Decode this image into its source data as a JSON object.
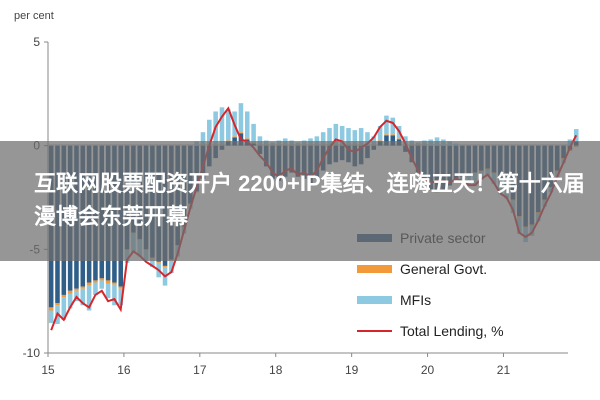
{
  "overlay": {
    "title": "互联网股票配资开户 2200+IP集结、连嗨五天！第十六届漫博会东莞开幕"
  },
  "chart_data": {
    "type": "bar",
    "unit_label": "per cent",
    "ylim": [
      -10,
      5
    ],
    "yticks": [
      5,
      0,
      -5,
      -10
    ],
    "xlim": [
      2015.0,
      2021.85
    ],
    "xticks": [
      "15",
      "16",
      "17",
      "18",
      "19",
      "20",
      "21"
    ],
    "stacked": true,
    "grid": false,
    "legend_position": "bottom-right",
    "colors": {
      "private": "#2f5f88",
      "general": "#f29a3a",
      "mfis": "#8ec9e2",
      "total": "#d7262b"
    },
    "legend": [
      "Private sector",
      "General Govt.",
      "MFIs",
      "Total Lending, %"
    ],
    "series": [
      {
        "name": "Private sector",
        "values": [
          -7.8,
          -7.6,
          -7.2,
          -7.0,
          -6.9,
          -6.8,
          -6.6,
          -6.5,
          -6.4,
          -6.5,
          -6.6,
          -6.8,
          -5.0,
          -4.2,
          -4.5,
          -5.0,
          -5.4,
          -5.6,
          -5.8,
          -5.5,
          -4.8,
          -3.9,
          -2.8,
          -2.2,
          -1.6,
          -1.0,
          -0.6,
          -0.2,
          0.2,
          0.4,
          0.6,
          0.3,
          0.1,
          -0.4,
          -1.0,
          -1.6,
          -1.7,
          -1.5,
          -1.3,
          -1.5,
          -1.6,
          -1.8,
          -1.6,
          -1.2,
          -0.9,
          -0.8,
          -0.7,
          -0.8,
          -1.0,
          -0.9,
          -0.6,
          -0.2,
          0.2,
          0.5,
          0.5,
          0.3,
          -0.3,
          -0.8,
          -1.3,
          -1.8,
          -2.1,
          -2.2,
          -2.1,
          -1.9,
          -1.6,
          -1.5,
          -1.4,
          -1.3,
          -1.2,
          -1.1,
          -1.3,
          -1.6,
          -2.0,
          -2.6,
          -3.4,
          -3.9,
          -3.8,
          -3.2,
          -2.6,
          -2.0,
          -1.2,
          -0.6,
          -0.2,
          0.2
        ],
        "values_per_year": 12
      },
      {
        "name": "General Govt.",
        "values": [
          -0.15,
          -0.1,
          -0.1,
          -0.15,
          -0.1,
          -0.1,
          -0.15,
          -0.1,
          -0.1,
          -0.15,
          -0.1,
          -0.1,
          -0.05,
          -0.05,
          -0.05,
          -0.05,
          -0.05,
          -0.05,
          -0.05,
          -0.05,
          -0.05,
          -0.05,
          -0.05,
          -0.05,
          0.05,
          0.05,
          0.05,
          0.05,
          0.05,
          0.05,
          0.05,
          0.05,
          0.05,
          0.05,
          0.05,
          0.05,
          0.05,
          0.05,
          0.05,
          0.05,
          0.05,
          0.05,
          0.05,
          0.05,
          0.05,
          0.05,
          0.05,
          0.05,
          0.05,
          0.05,
          0.05,
          0.05,
          0.05,
          0.05,
          0.05,
          0.05,
          0.05,
          0.05,
          0.05,
          0.05,
          -0.05,
          -0.05,
          -0.05,
          -0.05,
          -0.05,
          -0.05,
          -0.05,
          -0.05,
          -0.05,
          -0.05,
          -0.05,
          -0.05,
          -0.05,
          -0.05,
          -0.05,
          -0.05,
          -0.05,
          -0.05,
          -0.05,
          -0.05,
          -0.05,
          -0.05,
          -0.05,
          -0.05
        ],
        "values_per_year": 12
      },
      {
        "name": "MFIs",
        "values": [
          -0.6,
          -0.9,
          -1.1,
          -0.7,
          -0.5,
          -0.8,
          -1.2,
          -0.6,
          -0.4,
          -0.7,
          -1.0,
          -0.8,
          -0.6,
          -0.9,
          -0.8,
          -0.5,
          -0.4,
          -0.7,
          -0.9,
          -0.6,
          -0.5,
          -0.3,
          -0.2,
          0.2,
          0.6,
          1.2,
          1.6,
          1.8,
          1.5,
          1.2,
          1.4,
          1.3,
          0.9,
          0.4,
          0.2,
          0.1,
          0.2,
          0.3,
          0.2,
          0.1,
          0.2,
          0.3,
          0.4,
          0.6,
          0.8,
          1.0,
          0.9,
          0.8,
          0.7,
          0.8,
          0.6,
          0.4,
          0.7,
          0.9,
          0.8,
          0.6,
          0.4,
          0.2,
          0.1,
          0.2,
          0.3,
          0.4,
          0.3,
          0.2,
          0.1,
          -0.2,
          -0.4,
          -0.6,
          -0.4,
          -0.3,
          -0.5,
          -0.7,
          -0.5,
          -0.6,
          -0.8,
          -0.7,
          -0.5,
          -0.4,
          -0.3,
          -0.2,
          -0.3,
          -0.2,
          0.3,
          0.6
        ],
        "values_per_year": 12
      },
      {
        "name": "Total Lending, %",
        "type": "line",
        "values": [
          -8.9,
          -8.1,
          -8.4,
          -7.8,
          -7.3,
          -7.6,
          -7.8,
          -7.2,
          -7.0,
          -7.5,
          -7.4,
          -7.9,
          -5.5,
          -5.1,
          -5.3,
          -5.6,
          -5.8,
          -6.0,
          -6.3,
          -6.1,
          -5.2,
          -4.1,
          -3.0,
          -2.0,
          -1.0,
          0.0,
          0.9,
          1.4,
          1.8,
          1.0,
          0.3,
          0.2,
          -0.1,
          -0.5,
          -0.8,
          -1.3,
          -1.5,
          -1.2,
          -1.1,
          -1.4,
          -1.3,
          -1.5,
          -1.2,
          -0.6,
          -0.1,
          0.3,
          0.2,
          -0.2,
          -0.3,
          -0.1,
          0.1,
          0.4,
          0.9,
          1.2,
          1.1,
          0.7,
          0.1,
          -0.6,
          -1.2,
          -1.6,
          -1.8,
          -1.7,
          -1.7,
          -1.8,
          -1.6,
          -1.7,
          -1.9,
          -1.9,
          -1.6,
          -1.4,
          -1.8,
          -2.3,
          -2.5,
          -3.1,
          -4.2,
          -4.4,
          -4.2,
          -3.6,
          -2.9,
          -2.3,
          -1.5,
          -0.8,
          -0.1,
          0.5
        ],
        "values_per_year": 12
      }
    ]
  }
}
